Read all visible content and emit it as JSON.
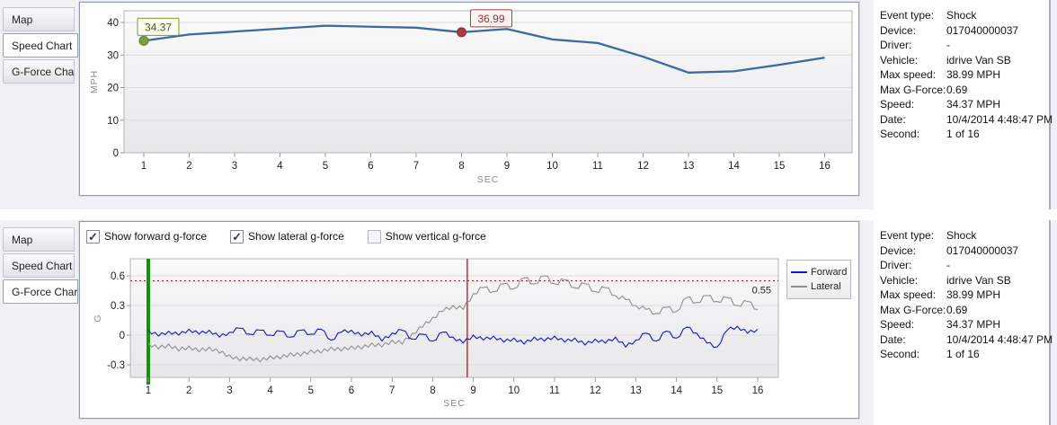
{
  "tabs": [
    "Map",
    "Speed Chart",
    "G-Force Chart"
  ],
  "panels": {
    "top": {
      "active_tab": "Speed Chart"
    },
    "bottom": {
      "active_tab": "G-Force Chart"
    }
  },
  "checkboxes": [
    {
      "label": "Show forward g-force",
      "checked": true
    },
    {
      "label": "Show lateral g-force",
      "checked": true
    },
    {
      "label": "Show vertical g-force",
      "checked": false
    }
  ],
  "event_info": {
    "rows": [
      {
        "label": "Event type:",
        "value": "Shock"
      },
      {
        "label": "Device:",
        "value": "017040000037"
      },
      {
        "label": "Driver:",
        "value": "-"
      },
      {
        "label": "Vehicle:",
        "value": "idrive Van SB"
      },
      {
        "label": "Max speed:",
        "value": "38.99 MPH"
      },
      {
        "label": "Max G-Force:",
        "value": "0.69"
      },
      {
        "label": "Speed:",
        "value": "34.37 MPH"
      },
      {
        "label": "Date:",
        "value": "10/4/2014 4:48:47 PM"
      },
      {
        "label": "Second:",
        "value": "1 of 16"
      }
    ]
  },
  "chart_data": [
    {
      "id": "speed_chart",
      "type": "line",
      "title": "Speed Chart",
      "xlabel": "SEC",
      "ylabel": "MPH",
      "xticks": [
        1,
        2,
        3,
        4,
        5,
        6,
        7,
        8,
        9,
        10,
        11,
        12,
        13,
        14,
        15,
        16
      ],
      "yticks": [
        0,
        10,
        20,
        30,
        40
      ],
      "ylim": [
        0,
        40
      ],
      "xlim": [
        1,
        16
      ],
      "grid": true,
      "line_color": "#3b6aa0",
      "x": [
        1,
        2,
        3,
        4,
        5,
        6,
        7,
        8,
        9,
        10,
        11,
        12,
        13,
        14,
        15,
        16
      ],
      "values": [
        34.37,
        36.3,
        37.2,
        38.1,
        39.0,
        38.7,
        38.4,
        36.99,
        38.0,
        34.8,
        33.7,
        29.5,
        24.6,
        25.0,
        27.0,
        29.2
      ],
      "annotations": [
        {
          "x": 1,
          "y": 34.37,
          "label": "34.37",
          "marker_color": "#7da03e",
          "marker_stroke": "#5f7d2c",
          "box_fill": "#fdfdf1",
          "box_border": "#7a9a38",
          "text_color": "#4c5c1e"
        },
        {
          "x": 8,
          "y": 36.99,
          "label": "36.99",
          "marker_color": "#aa3c3c",
          "marker_stroke": "#8b2f2f",
          "box_fill": "#fdf4f2",
          "box_border": "#a04040",
          "text_color": "#9a3333"
        }
      ]
    },
    {
      "id": "gforce_chart",
      "type": "line",
      "title": "G-Force Chart",
      "xlabel": "SEC",
      "ylabel": "G",
      "xticks": [
        1,
        2,
        3,
        4,
        5,
        6,
        7,
        8,
        9,
        10,
        11,
        12,
        13,
        14,
        15,
        16
      ],
      "yticks": [
        -0.3,
        0,
        0.3,
        0.6
      ],
      "ylim": [
        -0.43,
        0.77
      ],
      "xlim": [
        1,
        16
      ],
      "grid": true,
      "legend_position": "top-right",
      "x_start": 1,
      "x_step": 0.25,
      "threshold": {
        "value": 0.55,
        "label": "0.55",
        "color": "#e00000"
      },
      "vlines": [
        {
          "x": 1,
          "color": "#12930f",
          "width": 4,
          "name": "selected-second-line"
        },
        {
          "x": 8.85,
          "color": "#cf2b2b",
          "width": 1.5,
          "name": "event-time-line"
        }
      ],
      "series": [
        {
          "name": "Forward",
          "color": "#1414cc",
          "jitter": 0.018,
          "values": [
            0.05,
            -0.01,
            0.04,
            0.0,
            0.06,
            0.01,
            0.05,
            -0.02,
            0.03,
            0.07,
            0.01,
            0.05,
            0.0,
            0.04,
            -0.02,
            0.05,
            0.01,
            0.06,
            -0.05,
            0.03,
            0.05,
            -0.01,
            0.04,
            -0.06,
            0.02,
            0.05,
            -0.04,
            0.01,
            -0.06,
            0.03,
            -0.02,
            -0.08,
            0.0,
            -0.05,
            -0.01,
            -0.07,
            -0.03,
            -0.09,
            -0.02,
            -0.06,
            -0.01,
            -0.07,
            -0.03,
            -0.1,
            -0.04,
            -0.08,
            -0.02,
            -0.12,
            -0.05,
            0.02,
            -0.06,
            0.04,
            -0.03,
            0.08,
            0.02,
            -0.08,
            -0.12,
            0.05,
            0.09,
            0.02,
            0.06
          ]
        },
        {
          "name": "Lateral",
          "color": "#8f8f8f",
          "jitter": 0.022,
          "values": [
            -0.08,
            -0.14,
            -0.09,
            -0.16,
            -0.11,
            -0.17,
            -0.12,
            -0.18,
            -0.2,
            -0.26,
            -0.22,
            -0.27,
            -0.21,
            -0.24,
            -0.18,
            -0.21,
            -0.15,
            -0.18,
            -0.12,
            -0.16,
            -0.11,
            -0.14,
            -0.08,
            -0.12,
            -0.05,
            -0.09,
            0.02,
            0.08,
            0.18,
            0.24,
            0.3,
            0.26,
            0.42,
            0.48,
            0.44,
            0.52,
            0.47,
            0.58,
            0.52,
            0.6,
            0.52,
            0.56,
            0.48,
            0.52,
            0.44,
            0.48,
            0.4,
            0.36,
            0.3,
            0.26,
            0.22,
            0.28,
            0.24,
            0.38,
            0.33,
            0.4,
            0.34,
            0.38,
            0.3,
            0.34,
            0.26
          ]
        }
      ]
    }
  ]
}
